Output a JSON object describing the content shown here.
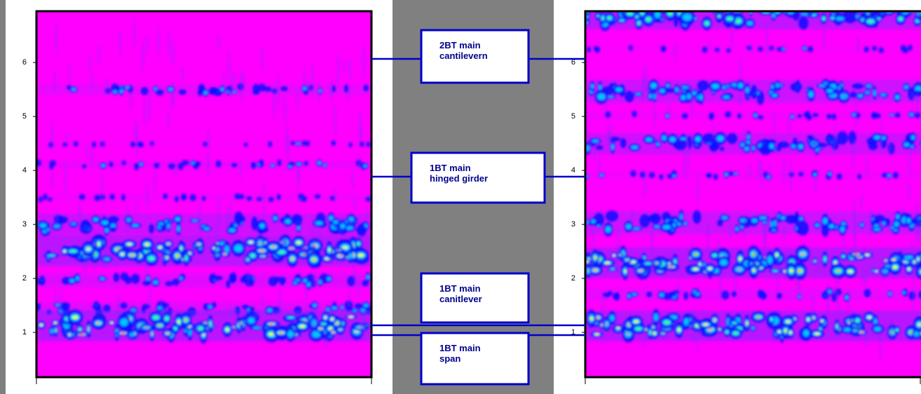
{
  "chart_data": [
    {
      "type": "heatmap",
      "ylim": [
        0.17,
        6.95
      ],
      "yticks": [
        1,
        2,
        3,
        4,
        5,
        6
      ]
    },
    {
      "type": "heatmap",
      "ylim": [
        0.17,
        6.95
      ],
      "yticks": [
        1,
        2,
        3,
        4,
        5,
        6
      ]
    }
  ],
  "annotations": [
    {
      "lines": [
        "2BT main",
        "cantilevern"
      ]
    },
    {
      "lines": [
        "1BT main",
        "hinged girder"
      ]
    },
    {
      "lines": [
        "1BT main",
        "canitlever"
      ]
    },
    {
      "lines": [
        "1BT main",
        "span"
      ]
    }
  ]
}
